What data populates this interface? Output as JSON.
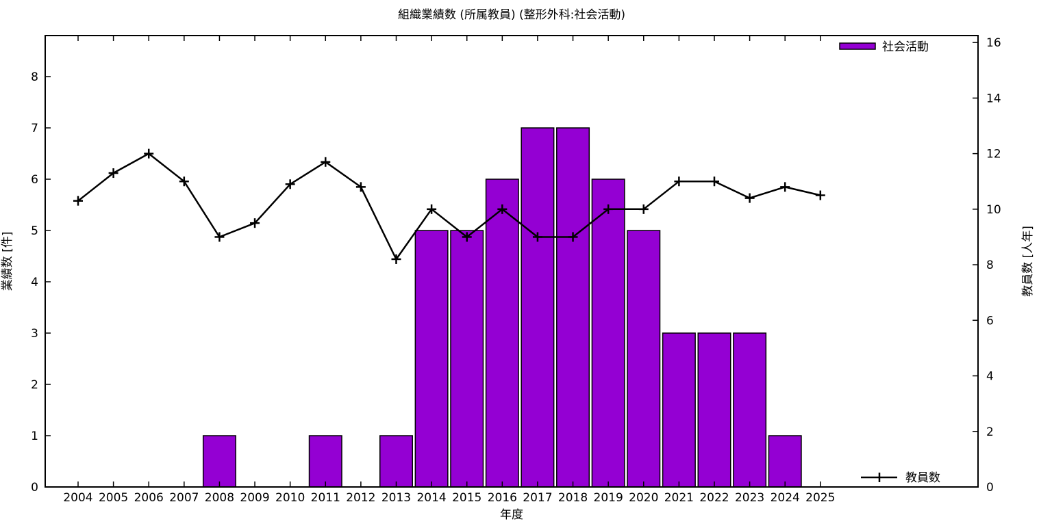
{
  "chart_data": {
    "type": "bar",
    "title": "組織業績数 (所属教員) (整形外科:社会活動)",
    "xlabel": "年度",
    "ylabel_left": "業績数 [件]",
    "ylabel_right": "教員数 [人年]",
    "categories": [
      2004,
      2005,
      2006,
      2007,
      2008,
      2009,
      2010,
      2011,
      2012,
      2013,
      2014,
      2015,
      2016,
      2017,
      2018,
      2019,
      2020,
      2021,
      2022,
      2023,
      2024,
      2025
    ],
    "series": [
      {
        "name": "社会活動",
        "kind": "bar",
        "axis": "left",
        "color": "#9400d3",
        "values": [
          0,
          0,
          0,
          0,
          1,
          0,
          0,
          1,
          0,
          1,
          5,
          5,
          6,
          7,
          7,
          6,
          5,
          3,
          3,
          3,
          1,
          0
        ]
      },
      {
        "name": "教員数",
        "kind": "line",
        "axis": "right",
        "color": "#000000",
        "marker": "plus",
        "values": [
          10.3,
          11.3,
          12.0,
          11.0,
          9.0,
          9.5,
          10.9,
          11.7,
          10.8,
          8.2,
          10.0,
          9.0,
          10.0,
          9.0,
          9.0,
          10.0,
          10.0,
          11.0,
          11.0,
          10.4,
          10.8,
          10.5
        ]
      }
    ],
    "axes": {
      "left": {
        "ticks": [
          0,
          1,
          2,
          3,
          4,
          5,
          6,
          7,
          8
        ],
        "range": [
          0,
          8.8
        ]
      },
      "right": {
        "ticks": [
          0,
          2,
          4,
          6,
          8,
          10,
          12,
          14,
          16
        ],
        "range": [
          0,
          16.25
        ]
      },
      "x": {
        "range": [
          2003.07,
          2029.46
        ]
      }
    },
    "legend": [
      {
        "label": "社会活動",
        "position": "top-right"
      },
      {
        "label": "教員数",
        "position": "bottom-right"
      }
    ],
    "grid": false,
    "background": "#ffffff",
    "border_color": "#000000"
  }
}
